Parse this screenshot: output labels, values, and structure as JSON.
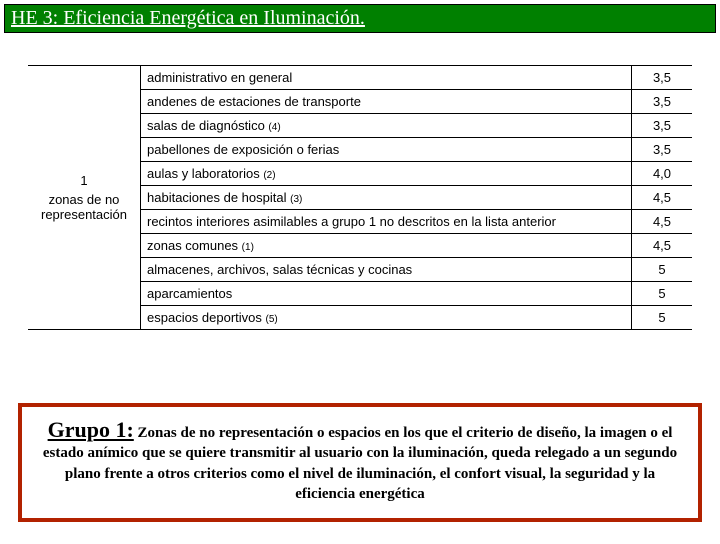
{
  "title": "HE 3: Eficiencia Energética en Iluminación.",
  "table": {
    "left_cell_num": "1",
    "left_cell_label": "zonas de no representación",
    "rows": [
      {
        "label": "administrativo en general",
        "note": "",
        "value": "3,5"
      },
      {
        "label": "andenes de estaciones de transporte",
        "note": "",
        "value": "3,5"
      },
      {
        "label": "salas de diagnóstico",
        "note": "(4)",
        "value": "3,5"
      },
      {
        "label": "pabellones de exposición o ferias",
        "note": "",
        "value": "3,5"
      },
      {
        "label": "aulas y laboratorios",
        "note": "(2)",
        "value": "4,0"
      },
      {
        "label": "habitaciones de hospital",
        "note": "(3)",
        "value": "4,5"
      },
      {
        "label": "recintos interiores asimilables a grupo 1 no descritos en la lista anterior",
        "note": "",
        "value": "4,5"
      },
      {
        "label": "zonas comunes",
        "note": "(1)",
        "value": "4,5"
      },
      {
        "label": "almacenes, archivos, salas técnicas y cocinas",
        "note": "",
        "value": "5"
      },
      {
        "label": "aparcamientos",
        "note": "",
        "value": "5"
      },
      {
        "label": "espacios  deportivos",
        "note": "(5)",
        "value": "5"
      }
    ]
  },
  "description": {
    "lead": "Grupo 1:",
    "body": " Zonas de no representación o espacios en los que el criterio de diseño, la imagen o el estado anímico que se quiere transmitir al usuario con la iluminación, queda relegado a un segundo plano frente a otros criterios como el nivel de iluminación, el confort visual, la seguridad y  la eficiencia energética"
  },
  "colors": {
    "title_bg": "#008000",
    "box_border": "#b22200"
  }
}
